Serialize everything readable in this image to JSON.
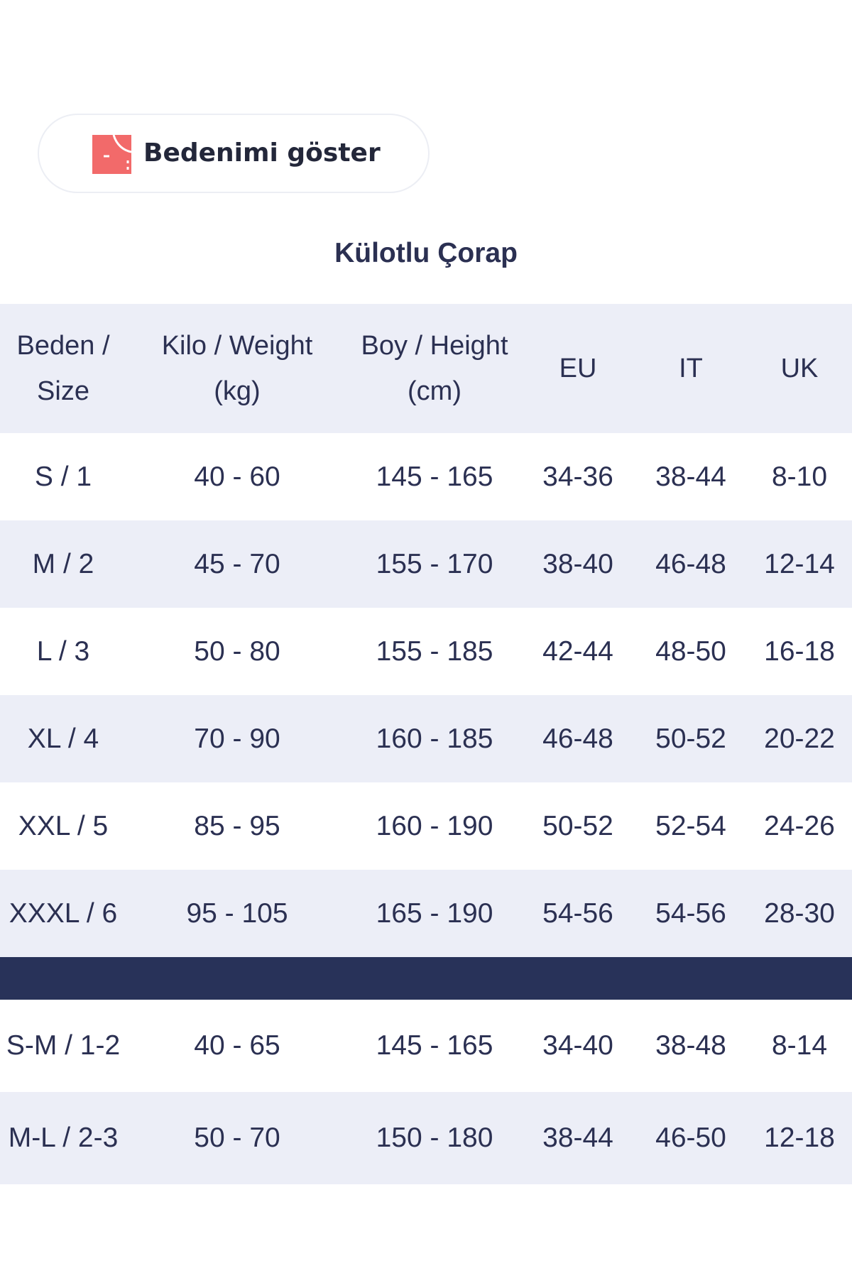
{
  "size_button": {
    "label": "Bedenimi göster",
    "icon": "tape-measure-icon",
    "icon_color": "#f26a6a"
  },
  "table_title": "Külotlu Çorap",
  "colors": {
    "header_bg": "#eceef7",
    "stripe_bg": "#eceef7",
    "separator_bg": "#283259",
    "text": "#2b3052"
  },
  "table": {
    "headers": [
      [
        "Beden /",
        "Size"
      ],
      [
        "Kilo / Weight",
        "(kg)"
      ],
      [
        "Boy / Height",
        "(cm)"
      ],
      [
        "EU"
      ],
      [
        "IT"
      ],
      [
        "UK"
      ]
    ],
    "rows": [
      [
        "S / 1",
        "40 - 60",
        "145 - 165",
        "34-36",
        "38-44",
        "8-10"
      ],
      [
        "M / 2",
        "45 - 70",
        "155 - 170",
        "38-40",
        "46-48",
        "12-14"
      ],
      [
        "L / 3",
        "50 - 80",
        "155 - 185",
        "42-44",
        "48-50",
        "16-18"
      ],
      [
        "XL / 4",
        "70 - 90",
        "160 - 185",
        "46-48",
        "50-52",
        "20-22"
      ],
      [
        "XXL / 5",
        "85 - 95",
        "160 - 190",
        "50-52",
        "52-54",
        "24-26"
      ],
      [
        "XXXL / 6",
        "95 - 105",
        "165 - 190",
        "54-56",
        "54-56",
        "28-30"
      ]
    ],
    "combined_rows": [
      [
        "S-M / 1-2",
        "40 - 65",
        "145 - 165",
        "34-40",
        "38-48",
        "8-14"
      ],
      [
        "M-L / 2-3",
        "50 - 70",
        "150 - 180",
        "38-44",
        "46-50",
        "12-18"
      ]
    ]
  }
}
